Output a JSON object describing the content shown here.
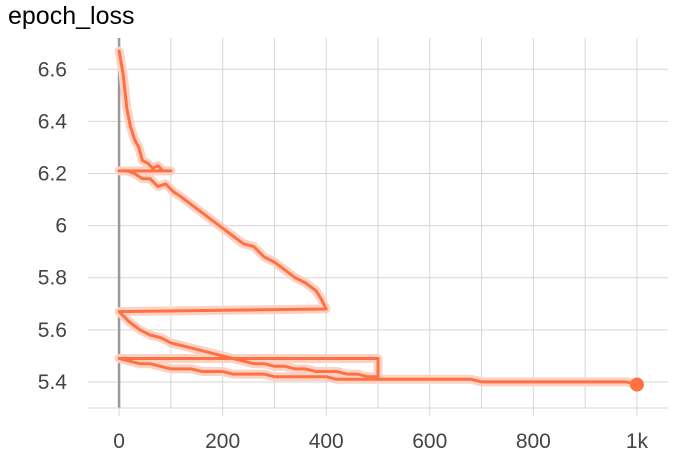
{
  "chart_data": {
    "type": "line",
    "title": "epoch_loss",
    "xlabel": "",
    "ylabel": "",
    "xlim": [
      -60,
      1060
    ],
    "ylim": [
      5.3,
      6.72
    ],
    "x_ticks": [
      0,
      200,
      400,
      600,
      800,
      1000
    ],
    "x_tick_labels": [
      "0",
      "200",
      "400",
      "600",
      "800",
      "1k"
    ],
    "y_ticks": [
      5.4,
      5.6,
      5.8,
      6.0,
      6.2,
      6.4,
      6.6
    ],
    "y_tick_labels": [
      "5.4",
      "5.6",
      "5.8",
      "6",
      "6.2",
      "6.4",
      "6.6"
    ],
    "grid": true,
    "colors": {
      "series": "#ff7043",
      "series_faint": "#fbd3c5",
      "grid": "#d6d6d6",
      "zero_line": "#999999"
    },
    "series": [
      {
        "x": [
          0,
          8,
          15,
          22,
          30,
          38,
          45,
          55,
          65,
          75,
          85,
          100,
          0,
          15,
          30,
          45,
          60,
          75,
          90,
          105,
          120,
          140,
          160,
          180,
          200,
          220,
          240,
          260,
          280,
          300,
          320,
          340,
          360,
          380,
          390,
          400,
          400,
          0,
          20,
          40,
          60,
          80,
          100,
          120,
          140,
          160,
          180,
          200,
          220,
          240,
          260,
          280,
          300,
          320,
          340,
          360,
          380,
          400,
          420,
          440,
          460,
          480,
          500,
          500,
          0,
          20,
          40,
          60,
          80,
          100,
          120,
          140,
          160,
          180,
          200,
          220,
          240,
          260,
          280,
          300,
          320,
          340,
          360,
          380,
          400,
          420,
          440,
          460,
          480,
          500,
          520,
          540,
          560,
          580,
          600,
          620,
          640,
          660,
          680,
          700,
          720,
          740,
          760,
          780,
          800,
          820,
          840,
          860,
          880,
          900,
          920,
          940,
          960,
          980,
          1000
        ],
        "y": [
          6.67,
          6.58,
          6.45,
          6.38,
          6.33,
          6.3,
          6.25,
          6.24,
          6.22,
          6.23,
          6.21,
          6.21,
          6.21,
          6.21,
          6.2,
          6.18,
          6.18,
          6.15,
          6.16,
          6.13,
          6.11,
          6.08,
          6.05,
          6.02,
          5.99,
          5.96,
          5.93,
          5.92,
          5.88,
          5.86,
          5.83,
          5.8,
          5.78,
          5.75,
          5.72,
          5.68,
          5.68,
          5.67,
          5.63,
          5.6,
          5.58,
          5.57,
          5.55,
          5.54,
          5.53,
          5.52,
          5.51,
          5.5,
          5.49,
          5.48,
          5.47,
          5.47,
          5.46,
          5.46,
          5.45,
          5.45,
          5.44,
          5.44,
          5.44,
          5.43,
          5.43,
          5.42,
          5.42,
          5.49,
          5.49,
          5.48,
          5.47,
          5.47,
          5.46,
          5.45,
          5.45,
          5.45,
          5.44,
          5.44,
          5.44,
          5.43,
          5.43,
          5.43,
          5.43,
          5.42,
          5.42,
          5.42,
          5.42,
          5.42,
          5.42,
          5.41,
          5.41,
          5.41,
          5.41,
          5.41,
          5.41,
          5.41,
          5.41,
          5.41,
          5.41,
          5.41,
          5.41,
          5.41,
          5.41,
          5.4,
          5.4,
          5.4,
          5.4,
          5.4,
          5.4,
          5.4,
          5.4,
          5.4,
          5.4,
          5.4,
          5.4,
          5.4,
          5.4,
          5.4,
          5.39
        ]
      }
    ]
  }
}
